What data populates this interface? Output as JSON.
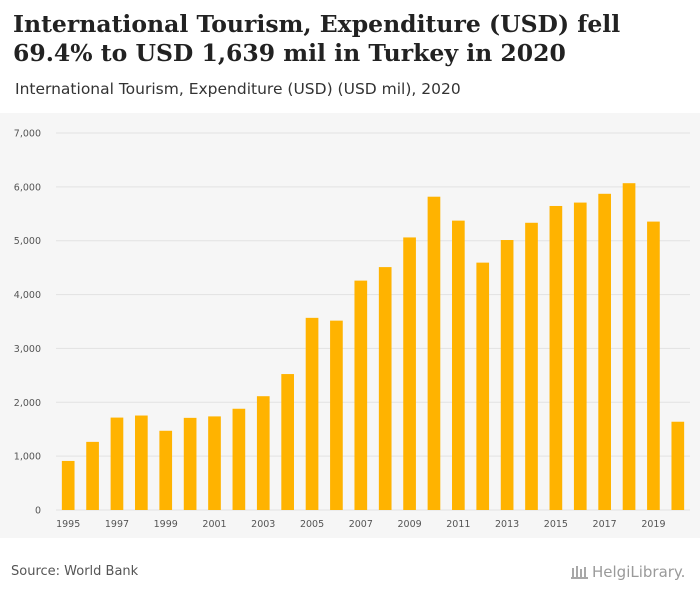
{
  "chart_data": {
    "type": "bar",
    "title": "International Tourism, Expenditure (USD) fell 69.4% to USD 1,639 mil in Turkey in 2020",
    "subtitle": "International Tourism, Expenditure (USD) (USD mil), 2020",
    "xlabel": "",
    "ylabel": "",
    "ylim": [
      0,
      7000
    ],
    "yticks": [
      0,
      1000,
      2000,
      3000,
      4000,
      5000,
      6000,
      7000
    ],
    "ytick_labels": [
      "0",
      "1,000",
      "2,000",
      "3,000",
      "4,000",
      "5,000",
      "6,000",
      "7,000"
    ],
    "grid": true,
    "categories": [
      "1995",
      "1996",
      "1997",
      "1998",
      "1999",
      "2000",
      "2001",
      "2002",
      "2003",
      "2004",
      "2005",
      "2006",
      "2007",
      "2008",
      "2009",
      "2010",
      "2011",
      "2012",
      "2013",
      "2014",
      "2015",
      "2016",
      "2017",
      "2018",
      "2019",
      "2020"
    ],
    "xtick_labels": [
      "1995",
      "1997",
      "1999",
      "2001",
      "2003",
      "2005",
      "2007",
      "2009",
      "2011",
      "2013",
      "2015",
      "2017",
      "2019"
    ],
    "values": [
      911,
      1265,
      1716,
      1754,
      1471,
      1711,
      1738,
      1880,
      2113,
      2524,
      3568,
      3516,
      4259,
      4510,
      5061,
      5817,
      5373,
      4593,
      5013,
      5333,
      5645,
      5708,
      5871,
      6068,
      5355,
      1639
    ],
    "color": "#ffb300",
    "grid_color": "#e2e2e2",
    "source": "Source: World Bank",
    "logo": "HelgiLibrary."
  }
}
